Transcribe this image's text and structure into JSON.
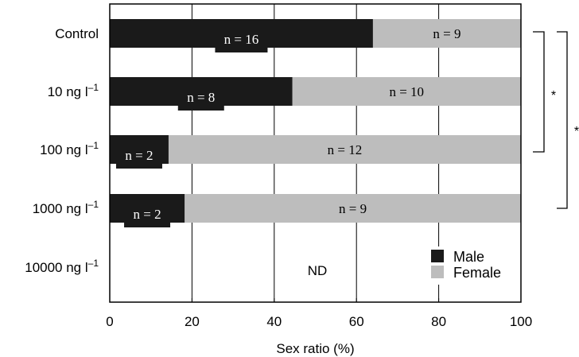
{
  "chart_data": {
    "type": "bar",
    "orientation": "horizontal",
    "stacked": true,
    "categories": [
      "Control",
      "10 ng l",
      "100 ng l",
      "1000 ng l",
      "10000 ng l"
    ],
    "category_superscript": [
      "",
      "–1",
      "–1",
      "–1",
      "–1"
    ],
    "series": [
      {
        "name": "Male",
        "values": [
          64,
          44.4,
          14.3,
          18.2,
          null
        ],
        "counts": [
          "n = 16",
          "n = 8",
          "n = 2",
          "n = 2",
          ""
        ],
        "color": "#1a1a1a"
      },
      {
        "name": "Female",
        "values": [
          36,
          55.6,
          85.7,
          81.8,
          null
        ],
        "counts": [
          "n = 9",
          "n = 10",
          "n = 12",
          "n = 9",
          ""
        ],
        "color": "#bdbdbd"
      }
    ],
    "xlabel": "Sex ratio (%)",
    "xlim": [
      0,
      100
    ],
    "xticks": [
      "0",
      "20",
      "40",
      "60",
      "80",
      "100"
    ],
    "grid": "vertical",
    "not_determined_label": "ND",
    "legend": {
      "position": "bottom-right",
      "entries": [
        "Male",
        "Female"
      ]
    },
    "significance": [
      "*",
      "*"
    ]
  }
}
